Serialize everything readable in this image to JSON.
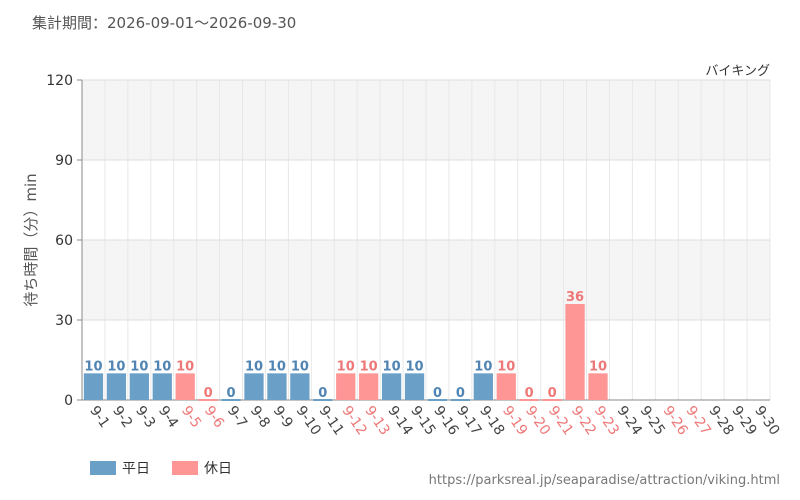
{
  "header": {
    "period_label": "集計期間：2026-09-01～2026-09-30"
  },
  "footer": {
    "source_url": "https://parksreal.jp/seaparadise/attraction/viking.html"
  },
  "colors": {
    "weekday": "#6a9fc7",
    "holiday": "#ff9696",
    "weekday_text": "#4f84b3",
    "holiday_text": "#ee7777",
    "grid_band": "#f5f5f5",
    "grid_line": "#dddddd"
  },
  "chart_data": {
    "type": "bar",
    "title": "バイキング",
    "ylabel": "待ち時間（分）min",
    "ylim": [
      0,
      120
    ],
    "yticks": [
      0,
      30,
      60,
      90,
      120
    ],
    "categories": [
      "9-1",
      "9-2",
      "9-3",
      "9-4",
      "9-5",
      "9-6",
      "9-7",
      "9-8",
      "9-9",
      "9-10",
      "9-11",
      "9-12",
      "9-13",
      "9-14",
      "9-15",
      "9-16",
      "9-17",
      "9-18",
      "9-19",
      "9-20",
      "9-21",
      "9-22",
      "9-23",
      "9-24",
      "9-25",
      "9-26",
      "9-27",
      "9-28",
      "9-29",
      "9-30"
    ],
    "values": [
      10,
      10,
      10,
      10,
      10,
      0,
      0,
      10,
      10,
      10,
      0,
      10,
      10,
      10,
      10,
      0,
      0,
      10,
      10,
      0,
      0,
      36,
      10,
      null,
      null,
      null,
      null,
      null,
      null,
      null
    ],
    "day_type": [
      "weekday",
      "weekday",
      "weekday",
      "weekday",
      "holiday",
      "holiday",
      "weekday",
      "weekday",
      "weekday",
      "weekday",
      "weekday",
      "holiday",
      "holiday",
      "weekday",
      "weekday",
      "weekday",
      "weekday",
      "weekday",
      "holiday",
      "holiday",
      "holiday",
      "holiday",
      "holiday",
      "weekday",
      "weekday",
      "holiday",
      "holiday",
      "weekday",
      "weekday",
      "weekday"
    ],
    "legend": [
      {
        "key": "weekday",
        "label": "平日"
      },
      {
        "key": "holiday",
        "label": "休日"
      }
    ],
    "legend_position": "bottom-left",
    "grid": true
  }
}
